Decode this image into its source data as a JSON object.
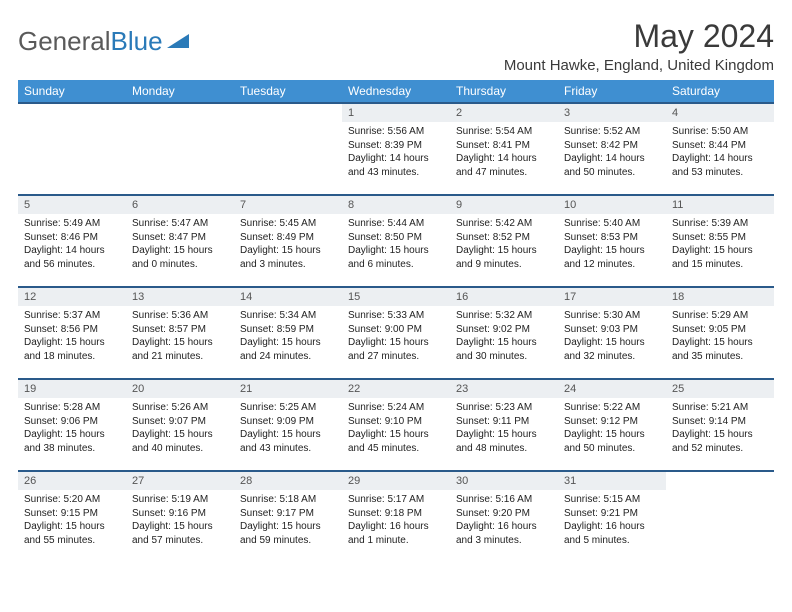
{
  "logo": {
    "text1": "General",
    "text2": "Blue"
  },
  "title": "May 2024",
  "subtitle": "Mount Hawke, England, United Kingdom",
  "header_bg": "#3f8fd1",
  "row_border": "#2a5a8a",
  "daynum_bg": "#eceff2",
  "weekdays": [
    "Sunday",
    "Monday",
    "Tuesday",
    "Wednesday",
    "Thursday",
    "Friday",
    "Saturday"
  ],
  "weeks": [
    [
      null,
      null,
      null,
      {
        "n": "1",
        "sr": "5:56 AM",
        "ss": "8:39 PM",
        "dl": "14 hours and 43 minutes."
      },
      {
        "n": "2",
        "sr": "5:54 AM",
        "ss": "8:41 PM",
        "dl": "14 hours and 47 minutes."
      },
      {
        "n": "3",
        "sr": "5:52 AM",
        "ss": "8:42 PM",
        "dl": "14 hours and 50 minutes."
      },
      {
        "n": "4",
        "sr": "5:50 AM",
        "ss": "8:44 PM",
        "dl": "14 hours and 53 minutes."
      }
    ],
    [
      {
        "n": "5",
        "sr": "5:49 AM",
        "ss": "8:46 PM",
        "dl": "14 hours and 56 minutes."
      },
      {
        "n": "6",
        "sr": "5:47 AM",
        "ss": "8:47 PM",
        "dl": "15 hours and 0 minutes."
      },
      {
        "n": "7",
        "sr": "5:45 AM",
        "ss": "8:49 PM",
        "dl": "15 hours and 3 minutes."
      },
      {
        "n": "8",
        "sr": "5:44 AM",
        "ss": "8:50 PM",
        "dl": "15 hours and 6 minutes."
      },
      {
        "n": "9",
        "sr": "5:42 AM",
        "ss": "8:52 PM",
        "dl": "15 hours and 9 minutes."
      },
      {
        "n": "10",
        "sr": "5:40 AM",
        "ss": "8:53 PM",
        "dl": "15 hours and 12 minutes."
      },
      {
        "n": "11",
        "sr": "5:39 AM",
        "ss": "8:55 PM",
        "dl": "15 hours and 15 minutes."
      }
    ],
    [
      {
        "n": "12",
        "sr": "5:37 AM",
        "ss": "8:56 PM",
        "dl": "15 hours and 18 minutes."
      },
      {
        "n": "13",
        "sr": "5:36 AM",
        "ss": "8:57 PM",
        "dl": "15 hours and 21 minutes."
      },
      {
        "n": "14",
        "sr": "5:34 AM",
        "ss": "8:59 PM",
        "dl": "15 hours and 24 minutes."
      },
      {
        "n": "15",
        "sr": "5:33 AM",
        "ss": "9:00 PM",
        "dl": "15 hours and 27 minutes."
      },
      {
        "n": "16",
        "sr": "5:32 AM",
        "ss": "9:02 PM",
        "dl": "15 hours and 30 minutes."
      },
      {
        "n": "17",
        "sr": "5:30 AM",
        "ss": "9:03 PM",
        "dl": "15 hours and 32 minutes."
      },
      {
        "n": "18",
        "sr": "5:29 AM",
        "ss": "9:05 PM",
        "dl": "15 hours and 35 minutes."
      }
    ],
    [
      {
        "n": "19",
        "sr": "5:28 AM",
        "ss": "9:06 PM",
        "dl": "15 hours and 38 minutes."
      },
      {
        "n": "20",
        "sr": "5:26 AM",
        "ss": "9:07 PM",
        "dl": "15 hours and 40 minutes."
      },
      {
        "n": "21",
        "sr": "5:25 AM",
        "ss": "9:09 PM",
        "dl": "15 hours and 43 minutes."
      },
      {
        "n": "22",
        "sr": "5:24 AM",
        "ss": "9:10 PM",
        "dl": "15 hours and 45 minutes."
      },
      {
        "n": "23",
        "sr": "5:23 AM",
        "ss": "9:11 PM",
        "dl": "15 hours and 48 minutes."
      },
      {
        "n": "24",
        "sr": "5:22 AM",
        "ss": "9:12 PM",
        "dl": "15 hours and 50 minutes."
      },
      {
        "n": "25",
        "sr": "5:21 AM",
        "ss": "9:14 PM",
        "dl": "15 hours and 52 minutes."
      }
    ],
    [
      {
        "n": "26",
        "sr": "5:20 AM",
        "ss": "9:15 PM",
        "dl": "15 hours and 55 minutes."
      },
      {
        "n": "27",
        "sr": "5:19 AM",
        "ss": "9:16 PM",
        "dl": "15 hours and 57 minutes."
      },
      {
        "n": "28",
        "sr": "5:18 AM",
        "ss": "9:17 PM",
        "dl": "15 hours and 59 minutes."
      },
      {
        "n": "29",
        "sr": "5:17 AM",
        "ss": "9:18 PM",
        "dl": "16 hours and 1 minute."
      },
      {
        "n": "30",
        "sr": "5:16 AM",
        "ss": "9:20 PM",
        "dl": "16 hours and 3 minutes."
      },
      {
        "n": "31",
        "sr": "5:15 AM",
        "ss": "9:21 PM",
        "dl": "16 hours and 5 minutes."
      },
      null
    ]
  ],
  "labels": {
    "sunrise": "Sunrise:",
    "sunset": "Sunset:",
    "daylight": "Daylight:"
  }
}
